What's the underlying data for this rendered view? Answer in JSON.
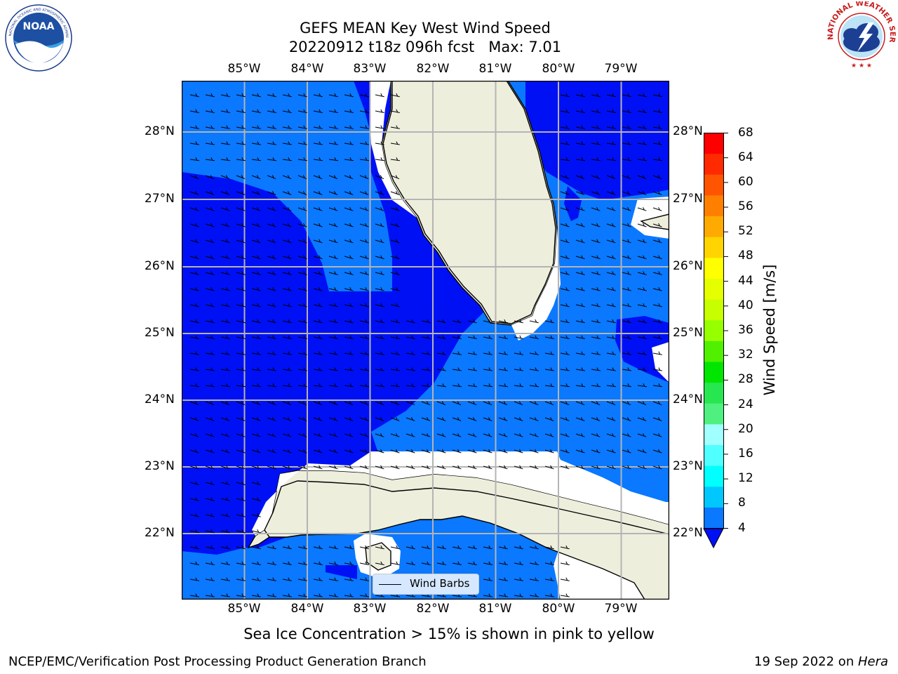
{
  "title": {
    "line1": "GEFS MEAN Key West Wind Speed",
    "line2": "20220912 t18z 096h fcst   Max: 7.01"
  },
  "logos": {
    "left": {
      "icon": "noaa-logo",
      "text": "NOAA",
      "ring_text": "NATIONAL OCEANIC AND ATMOSPHERIC ADMINISTRATION · U.S. DEPARTMENT OF COMMERCE"
    },
    "right": {
      "icon": "nws-logo",
      "ring_text": "NATIONAL WEATHER SERVICE"
    }
  },
  "map": {
    "lon_labels": [
      "85°W",
      "84°W",
      "83°W",
      "82°W",
      "81°W",
      "80°W",
      "79°W"
    ],
    "lat_labels": [
      "28°N",
      "27°N",
      "26°N",
      "25°N",
      "24°N",
      "23°N",
      "22°N"
    ],
    "lon_range": [
      -86.0,
      -78.3
    ],
    "lat_range": [
      21.05,
      28.8
    ],
    "legend_label": "Wind Barbs",
    "colors": {
      "ocean_4_8": "#0a78ff",
      "ocean_below_4": "#0010f5",
      "land": "#eeeedd",
      "grid": "#b4b4b4",
      "barb": "#000000"
    }
  },
  "colorbar": {
    "label": "Wind Speed [m/s]",
    "ticks": [
      "68",
      "64",
      "60",
      "56",
      "52",
      "48",
      "44",
      "40",
      "36",
      "32",
      "28",
      "24",
      "20",
      "16",
      "12",
      "8",
      "4"
    ],
    "colors": [
      "#ff0000",
      "#ff2a00",
      "#ff5500",
      "#ff8000",
      "#ffaa00",
      "#ffd400",
      "#ffff00",
      "#e6ff00",
      "#c8ff00",
      "#96ff00",
      "#50f000",
      "#00e600",
      "#28e650",
      "#50f080",
      "#a0ffff",
      "#50ffff",
      "#00ffff",
      "#00c8ff",
      "#0a78ff"
    ],
    "extend_color": "#0010f5"
  },
  "note": "Sea Ice Concentration > 15% is shown in pink to yellow",
  "footer": {
    "left": "NCEP/EMC/Verification Post Processing Product Generation Branch",
    "date": "19 Sep 2022 on ",
    "machine": "Hera"
  }
}
